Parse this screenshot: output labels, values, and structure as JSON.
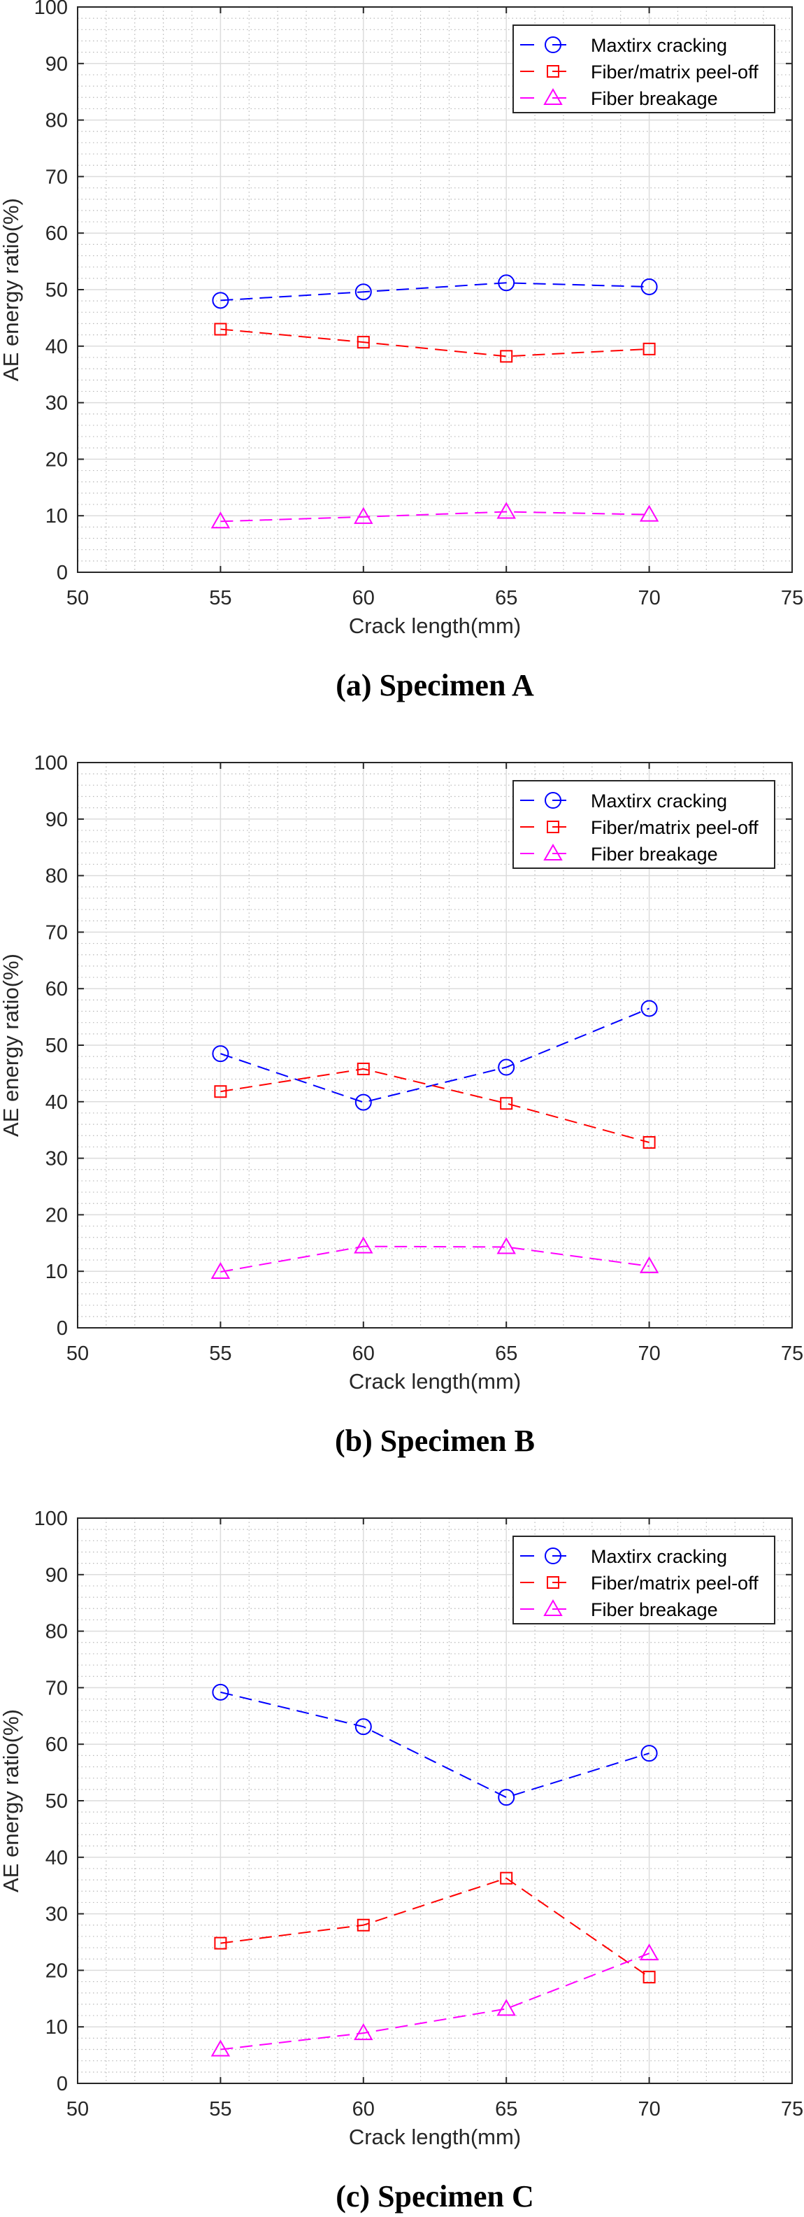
{
  "chart_data": [
    {
      "type": "line",
      "caption": "(a) Specimen A",
      "xlabel": "Crack length(mm)",
      "ylabel": "AE energy ratio(%)",
      "xlim": [
        50,
        75
      ],
      "ylim": [
        0,
        100
      ],
      "xticks": [
        "50",
        "55",
        "60",
        "65",
        "70",
        "75"
      ],
      "yticks": [
        "0",
        "10",
        "20",
        "30",
        "40",
        "50",
        "60",
        "70",
        "80",
        "90",
        "100"
      ],
      "grid": true,
      "legend_position": "top-right",
      "x": [
        55,
        60,
        65,
        70
      ],
      "series": [
        {
          "name": "Maxtirx cracking",
          "color": "#0000ff",
          "marker": "circle",
          "values": [
            48.1,
            49.6,
            51.2,
            50.5
          ]
        },
        {
          "name": "Fiber/matrix peel-off",
          "color": "#ff0000",
          "marker": "square",
          "values": [
            43.0,
            40.7,
            38.2,
            39.5
          ]
        },
        {
          "name": "Fiber breakage",
          "color": "#ff00ff",
          "marker": "triangle",
          "values": [
            9.0,
            9.8,
            10.7,
            10.2
          ]
        }
      ]
    },
    {
      "type": "line",
      "caption": "(b) Specimen B",
      "xlabel": "Crack length(mm)",
      "ylabel": "AE energy ratio(%)",
      "xlim": [
        50,
        75
      ],
      "ylim": [
        0,
        100
      ],
      "xticks": [
        "50",
        "55",
        "60",
        "65",
        "70",
        "75"
      ],
      "yticks": [
        "0",
        "10",
        "20",
        "30",
        "40",
        "50",
        "60",
        "70",
        "80",
        "90",
        "100"
      ],
      "grid": true,
      "legend_position": "top-right",
      "x": [
        55,
        60,
        65,
        70
      ],
      "series": [
        {
          "name": "Maxtirx cracking",
          "color": "#0000ff",
          "marker": "circle",
          "values": [
            48.5,
            39.9,
            46.1,
            56.5
          ]
        },
        {
          "name": "Fiber/matrix peel-off",
          "color": "#ff0000",
          "marker": "square",
          "values": [
            41.8,
            45.8,
            39.7,
            32.8
          ]
        },
        {
          "name": "Fiber breakage",
          "color": "#ff00ff",
          "marker": "triangle",
          "values": [
            9.9,
            14.4,
            14.3,
            10.9
          ]
        }
      ]
    },
    {
      "type": "line",
      "caption": "(c) Specimen C",
      "xlabel": "Crack length(mm)",
      "ylabel": "AE energy ratio(%)",
      "xlim": [
        50,
        75
      ],
      "ylim": [
        0,
        100
      ],
      "xticks": [
        "50",
        "55",
        "60",
        "65",
        "70",
        "75"
      ],
      "yticks": [
        "0",
        "10",
        "20",
        "30",
        "40",
        "50",
        "60",
        "70",
        "80",
        "90",
        "100"
      ],
      "grid": true,
      "legend_position": "top-right",
      "x": [
        55,
        60,
        65,
        70
      ],
      "series": [
        {
          "name": "Maxtirx cracking",
          "color": "#0000ff",
          "marker": "circle",
          "values": [
            69.2,
            63.1,
            50.6,
            58.4
          ]
        },
        {
          "name": "Fiber/matrix peel-off",
          "color": "#ff0000",
          "marker": "square",
          "values": [
            24.8,
            28.0,
            36.3,
            18.8
          ]
        },
        {
          "name": "Fiber breakage",
          "color": "#ff00ff",
          "marker": "triangle",
          "values": [
            6.0,
            8.9,
            13.2,
            23.0
          ]
        }
      ]
    }
  ]
}
